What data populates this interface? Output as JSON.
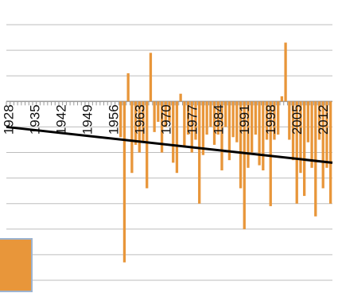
{
  "chart_data": {
    "type": "bar",
    "title": "",
    "xlabel": "",
    "ylabel": "",
    "x_start": 1928,
    "x_end": 2014,
    "x_tick_labels": [
      "1928",
      "1935",
      "1942",
      "1949",
      "1956",
      "1963",
      "1970",
      "1977",
      "1984",
      "1991",
      "1998",
      "2005",
      "2012"
    ],
    "ylim": [
      -7.0,
      3.5
    ],
    "grid": "horizontal",
    "legend": "none",
    "series": [
      {
        "color": "#E8963A",
        "values": [
          0,
          0,
          0,
          0,
          0,
          0,
          0,
          0,
          0,
          0,
          0,
          0,
          0,
          0,
          0,
          0,
          0,
          0,
          0,
          0,
          0,
          0,
          0,
          0,
          0,
          0,
          0,
          0,
          0,
          0,
          -1.4,
          -6.3,
          1.1,
          -2.8,
          -1.7,
          -2.0,
          -1.6,
          -3.4,
          1.9,
          -1.2,
          -0.8,
          -2.0,
          -1.0,
          -0.8,
          -2.4,
          -2.8,
          0.3,
          -1.8,
          -1.3,
          -2.0,
          -1.5,
          -4.0,
          -2.1,
          -1.3,
          -1.0,
          -1.7,
          -1.3,
          -2.7,
          -1.0,
          -2.3,
          -1.4,
          -1.6,
          -3.4,
          -5.0,
          -2.6,
          -2.0,
          -1.3,
          -2.5,
          -2.7,
          -1.5,
          -4.1,
          -1.5,
          -1.3,
          0.2,
          2.3,
          -1.5,
          -2.3,
          -4.0,
          -2.8,
          -3.7,
          -1.6,
          -2.6,
          -4.5,
          -1.5,
          -3.4,
          -2.6,
          -4.0
        ]
      }
    ],
    "trend": {
      "color": "#000000",
      "y_at_start": -1.0,
      "y_at_end": -2.4
    }
  }
}
